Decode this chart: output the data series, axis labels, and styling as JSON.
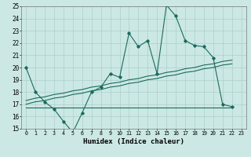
{
  "xlabel": "Humidex (Indice chaleur)",
  "bg_color": "#cce8e4",
  "grid_color": "#aacfcb",
  "line_color": "#1a6b5e",
  "x": [
    0,
    1,
    2,
    3,
    4,
    5,
    6,
    7,
    8,
    9,
    10,
    11,
    12,
    13,
    14,
    15,
    16,
    17,
    18,
    19,
    20,
    21,
    22,
    23
  ],
  "y_main": [
    20.0,
    18.0,
    17.2,
    16.6,
    15.6,
    14.7,
    16.3,
    18.0,
    18.4,
    19.5,
    19.2,
    22.8,
    21.7,
    22.2,
    19.5,
    25.1,
    24.2,
    22.2,
    21.8,
    21.7,
    20.8,
    17.0,
    16.8,
    null
  ],
  "y_trend1": [
    17.3,
    17.5,
    17.6,
    17.8,
    17.9,
    18.1,
    18.2,
    18.4,
    18.5,
    18.7,
    18.8,
    19.0,
    19.1,
    19.3,
    19.4,
    19.6,
    19.7,
    19.9,
    20.0,
    20.2,
    20.3,
    20.5,
    20.6,
    null
  ],
  "y_trend2": [
    17.0,
    17.2,
    17.3,
    17.5,
    17.6,
    17.8,
    17.9,
    18.1,
    18.2,
    18.4,
    18.5,
    18.7,
    18.8,
    19.0,
    19.1,
    19.3,
    19.4,
    19.6,
    19.7,
    19.9,
    20.0,
    20.2,
    20.3,
    null
  ],
  "y_flat": [
    16.7,
    16.7,
    16.7,
    16.7,
    16.7,
    16.7,
    16.7,
    16.7,
    16.7,
    16.7,
    16.7,
    16.7,
    16.7,
    16.7,
    16.7,
    16.7,
    16.7,
    16.7,
    16.7,
    16.7,
    16.7,
    16.7,
    16.7,
    null
  ],
  "ylim": [
    15,
    25
  ],
  "yticks": [
    15,
    16,
    17,
    18,
    19,
    20,
    21,
    22,
    23,
    24,
    25
  ],
  "xlim": [
    -0.5,
    23.5
  ],
  "xtick_fontsize": 4.8,
  "ytick_fontsize": 5.5,
  "xlabel_fontsize": 6.5
}
